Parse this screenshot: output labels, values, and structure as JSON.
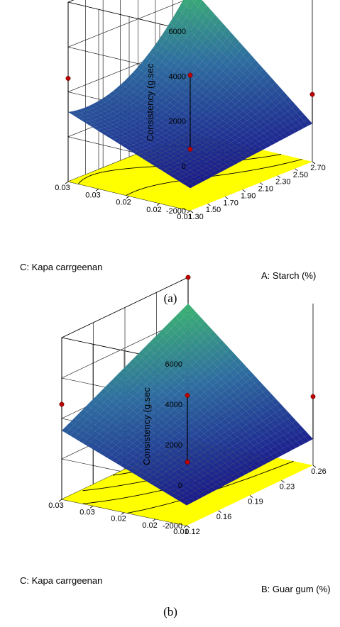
{
  "chart_data": [
    {
      "type": "surface3d",
      "panel_label": "(a)",
      "zlabel": "Consistency (g.sec",
      "xlabel": "A: Starch (%)",
      "ylabel": "C: Kapa carrgeenan",
      "z_ticks": [
        "6000",
        "4000",
        "2000",
        "0",
        "-2000"
      ],
      "x_ticks": [
        "1.30",
        "1.50",
        "1.70",
        "1.90",
        "2.10",
        "2.30",
        "2.50",
        "2.70"
      ],
      "y_ticks": [
        "0.01",
        "0.02",
        "0.02",
        "0.03",
        "0.03"
      ],
      "zlim": [
        -2000,
        6000
      ],
      "xlim": [
        1.3,
        2.7
      ],
      "ylim": [
        0.01,
        0.03
      ],
      "surface_corners": {
        "x_low_y_low": -1000,
        "x_high_y_low": -300,
        "x_low_y_high": 1100,
        "x_high_y_high": 4500
      },
      "surface_curvature": -1200,
      "design_points": [
        {
          "x": 1.3,
          "y": 0.03,
          "z": 2600
        },
        {
          "x": 2.7,
          "y": 0.03,
          "z": 5300
        },
        {
          "x": 2.7,
          "y": 0.01,
          "z": 1000
        },
        {
          "x": 2.0,
          "y": 0.02,
          "z": 2300
        },
        {
          "x": 2.0,
          "y": 0.02,
          "z": -1000
        }
      ],
      "colors": {
        "low": "#1a1a8c",
        "mid": "#2f6fa0",
        "high": "#3cb371",
        "floor": "#ffff00"
      }
    },
    {
      "type": "surface3d",
      "panel_label": "(b)",
      "zlabel": "Consistency (g.sec",
      "xlabel": "B: Guar gum (%)",
      "ylabel": "C: Kapa carrgeenan",
      "z_ticks": [
        "6000",
        "4000",
        "2000",
        "0",
        "-2000"
      ],
      "x_ticks": [
        "0.12",
        "0.16",
        "0.19",
        "0.23",
        "0.26"
      ],
      "y_ticks": [
        "0.01",
        "0.02",
        "0.02",
        "0.03",
        "0.03"
      ],
      "zlim": [
        -2000,
        6000
      ],
      "xlim": [
        0.12,
        0.26
      ],
      "ylim": [
        0.01,
        0.03
      ],
      "surface_corners": {
        "x_low_y_low": -1000,
        "x_high_y_low": -700,
        "x_low_y_high": 1400,
        "x_high_y_high": 4700
      },
      "surface_curvature": 0,
      "design_points": [
        {
          "x": 0.12,
          "y": 0.03,
          "z": 2700
        },
        {
          "x": 0.26,
          "y": 0.03,
          "z": 6000
        },
        {
          "x": 0.26,
          "y": 0.01,
          "z": 1400
        },
        {
          "x": 0.19,
          "y": 0.02,
          "z": 2300
        },
        {
          "x": 0.19,
          "y": 0.02,
          "z": -1000
        }
      ],
      "colors": {
        "low": "#1a1a8c",
        "mid": "#2f6fa0",
        "high": "#3cb371",
        "floor": "#ffff00"
      }
    }
  ]
}
